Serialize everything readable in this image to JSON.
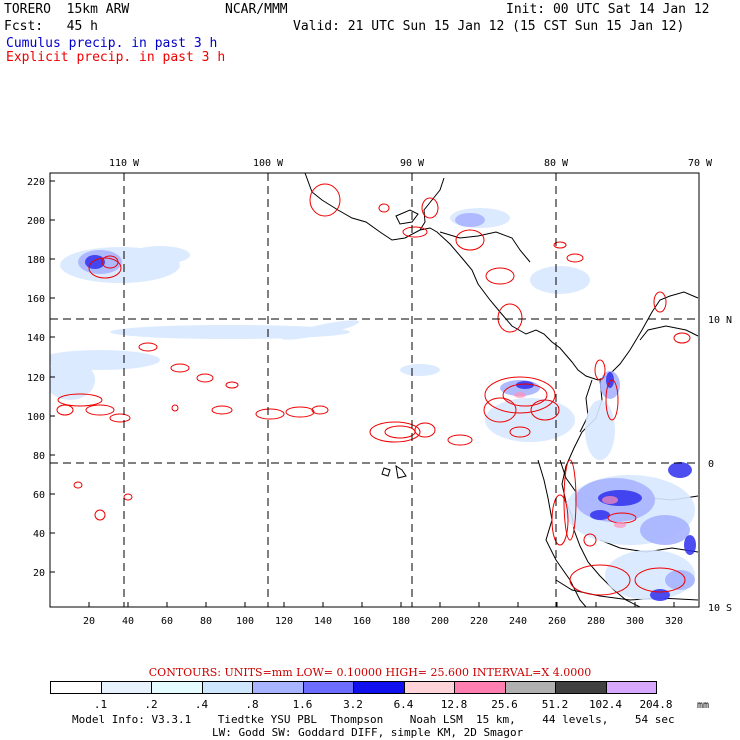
{
  "header": {
    "model": "TORERO  15km ARW",
    "org": "NCAR/MMM",
    "init": "Init: 00 UTC Sat 14 Jan 12",
    "fcst": "Fcst:   45 h",
    "valid": "Valid: 21 UTC Sun 15 Jan 12 (15 CST Sun 15 Jan 12)",
    "line_cumulus": "Cumulus precip. in past 3 h",
    "line_explicit": "Explicit precip. in past 3 h"
  },
  "map": {
    "lon_labels": [
      "110 W",
      "100 W",
      "90 W",
      "80 W",
      "70 W"
    ],
    "lat_labels": [
      "10 N",
      "0",
      "10 S"
    ],
    "y_ticks": [
      "220",
      "200",
      "180",
      "160",
      "140",
      "120",
      "100",
      "80",
      "60",
      "40",
      "20"
    ],
    "x_ticks": [
      "20",
      "40",
      "60",
      "80",
      "100",
      "120",
      "140",
      "160",
      "180",
      "200",
      "220",
      "240",
      "260",
      "280",
      "300",
      "320"
    ]
  },
  "contours_line": "CONTOURS:  UNITS=mm  LOW= 0.10000     HIGH=  25.600     INTERVAL=X  4.0000",
  "legend": {
    "labels": [
      ".1",
      ".2",
      ".4",
      ".8",
      "1.6",
      "3.2",
      "6.4",
      "12.8",
      "25.6",
      "51.2",
      "102.4",
      "204.8"
    ],
    "unit": "mm",
    "colors": [
      "#ffffff",
      "#e8f2ff",
      "#e4fbff",
      "#cfe6ff",
      "#a8b4ff",
      "#6c6cff",
      "#1010ee",
      "#ffd4d8",
      "#ff80b0",
      "#b0b0b0",
      "#404040",
      "#d8a8ff"
    ]
  },
  "footer": {
    "line1": "Model Info: V3.3.1    Tiedtke YSU PBL  Thompson    Noah LSM  15 km,    44 levels,    54 sec",
    "line2": "LW: Godd SW: Goddard DIFF, simple KM, 2D Smagor"
  }
}
